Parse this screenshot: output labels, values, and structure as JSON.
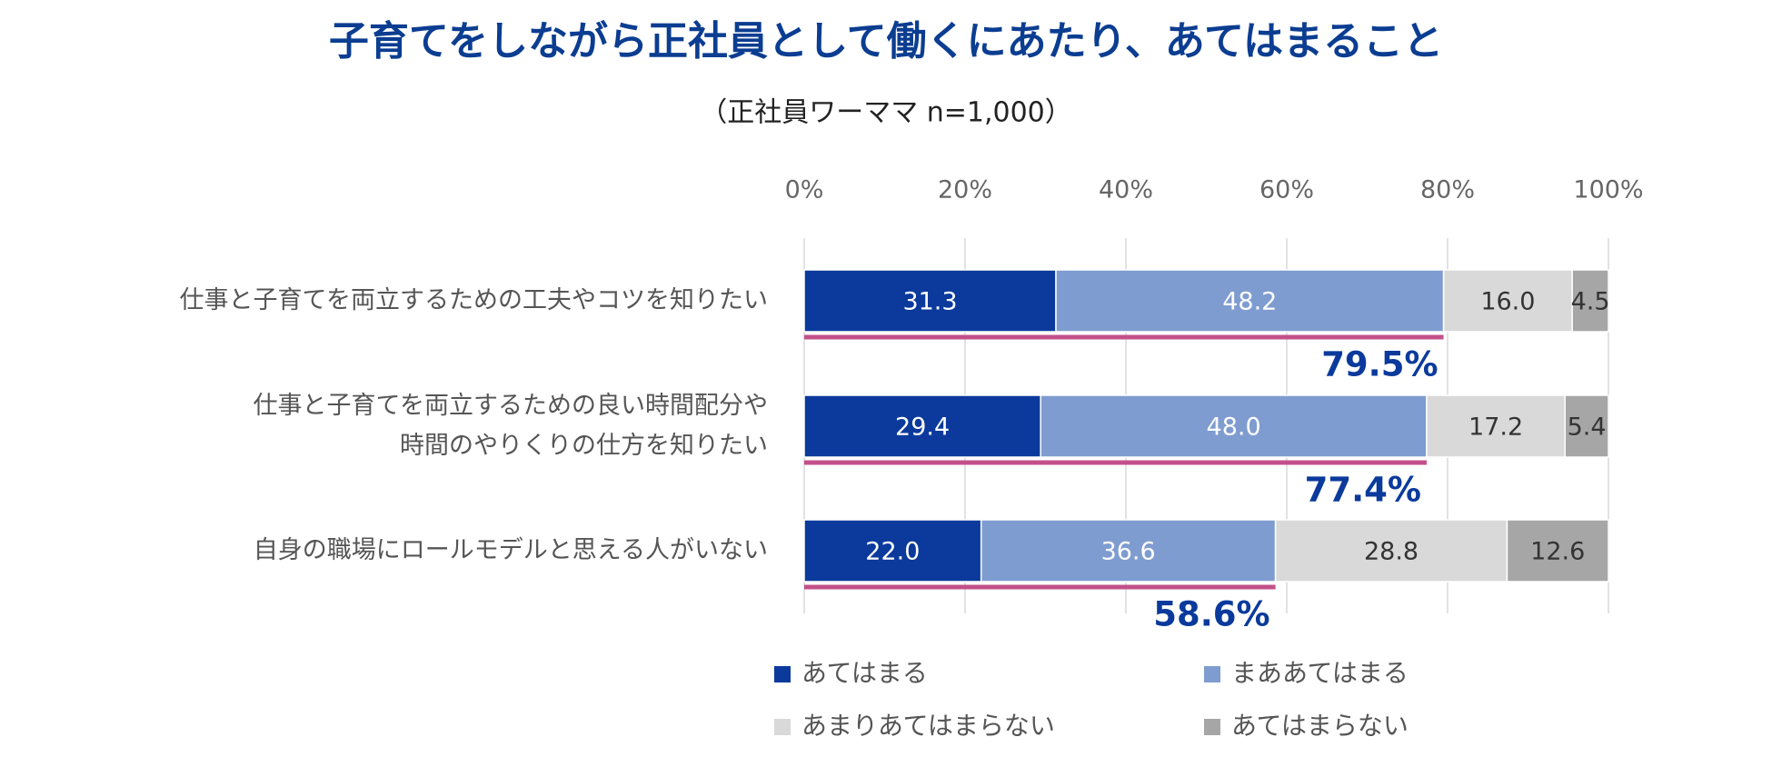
{
  "chart_data": {
    "type": "stacked-barh",
    "title": "子育てをしながら正社員として働くにあたり、あてはまること",
    "subtitle": "（正社員ワーママ n=1,000）",
    "categories": [
      "仕事と子育てを両立するための工夫やコツを知りたい",
      "仕事と子育てを両立するための良い時間配分や\n時間のやりくりの仕方を知りたい",
      "自身の職場にロールモデルと思える人がいない"
    ],
    "series": [
      {
        "name": "あてはまる",
        "color": "#0b3a9c",
        "label_color": "#ffffff",
        "values": [
          31.3,
          29.4,
          22.0
        ],
        "value_labels": [
          "31.3",
          "29.4",
          "22.0"
        ]
      },
      {
        "name": "まああてはまる",
        "color": "#7f9cd0",
        "label_color": "#ffffff",
        "values": [
          48.2,
          48.0,
          36.6
        ],
        "value_labels": [
          "48.2",
          "48.0",
          "36.6"
        ]
      },
      {
        "name": "あまりあてはまらない",
        "color": "#d9d9d9",
        "label_color": "#333333",
        "values": [
          16.0,
          17.2,
          28.8
        ],
        "value_labels": [
          "16.0",
          "17.2",
          "28.8"
        ]
      },
      {
        "name": "あてはまらない",
        "color": "#a6a6a6",
        "label_color": "#333333",
        "values": [
          4.5,
          5.4,
          12.6
        ],
        "value_labels": [
          "4.5",
          "5.4",
          "12.6"
        ]
      }
    ],
    "totals": {
      "color": "#c2508a",
      "label_color": "#0b3a9c",
      "values": [
        79.5,
        77.4,
        58.6
      ],
      "value_labels": [
        "79.5%",
        "77.4%",
        "58.6%"
      ]
    },
    "xlim": [
      0,
      100
    ],
    "xticks": [
      {
        "value": 0,
        "label": "0%"
      },
      {
        "value": 20,
        "label": "20%"
      },
      {
        "value": 40,
        "label": "40%"
      },
      {
        "value": 60,
        "label": "60%"
      },
      {
        "value": 80,
        "label": "80%"
      },
      {
        "value": 100,
        "label": "100%"
      }
    ],
    "grid": true
  }
}
